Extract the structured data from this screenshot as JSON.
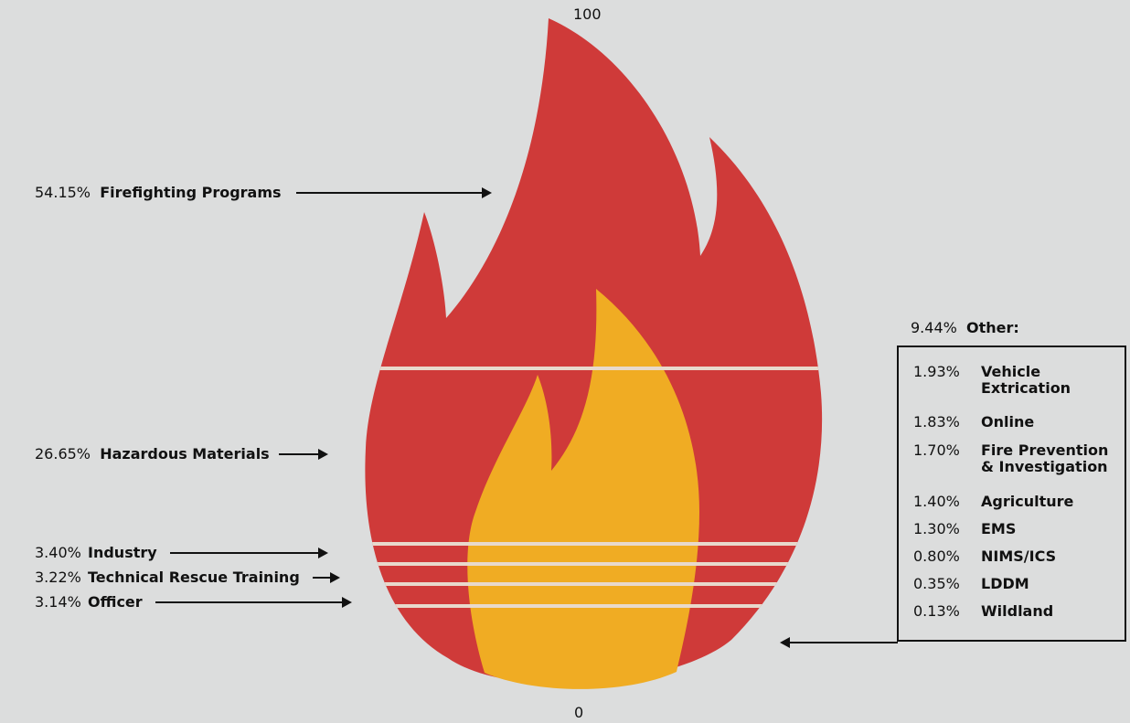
{
  "colors": {
    "background": "#dcdddd",
    "outer_flame": "#cf3a39",
    "inner_flame": "#f0ac23",
    "divider": "#e8d9cc"
  },
  "chart_data": {
    "type": "stacked-flame",
    "axis": {
      "top_label": "100",
      "bottom_label": "0",
      "range": [
        0,
        100
      ]
    },
    "segments": [
      {
        "name": "Firefighting Programs",
        "percent": "54.15%",
        "value": 54.15
      },
      {
        "name": "Hazardous Materials",
        "percent": "26.65%",
        "value": 26.65
      },
      {
        "name": "Industry",
        "percent": "3.40%",
        "value": 3.4
      },
      {
        "name": "Technical Rescue Training",
        "percent": "3.22%",
        "value": 3.22
      },
      {
        "name": "Officer",
        "percent": "3.14%",
        "value": 3.14
      }
    ],
    "other": {
      "name": "Other:",
      "percent": "9.44%",
      "value": 9.44,
      "items": [
        {
          "name": [
            "Vehicle",
            "Extrication"
          ],
          "percent": "1.93%",
          "value": 1.93
        },
        {
          "name": [
            "Online"
          ],
          "percent": "1.83%",
          "value": 1.83
        },
        {
          "name": [
            "Fire Prevention",
            "& Investigation"
          ],
          "percent": "1.70%",
          "value": 1.7
        },
        {
          "name": [
            "Agriculture"
          ],
          "percent": "1.40%",
          "value": 1.4
        },
        {
          "name": [
            "EMS"
          ],
          "percent": "1.30%",
          "value": 1.3
        },
        {
          "name": [
            "NIMS/ICS"
          ],
          "percent": "0.80%",
          "value": 0.8
        },
        {
          "name": [
            "LDDM"
          ],
          "percent": "0.35%",
          "value": 0.35
        },
        {
          "name": [
            "Wildland"
          ],
          "percent": "0.13%",
          "value": 0.13
        }
      ]
    }
  }
}
